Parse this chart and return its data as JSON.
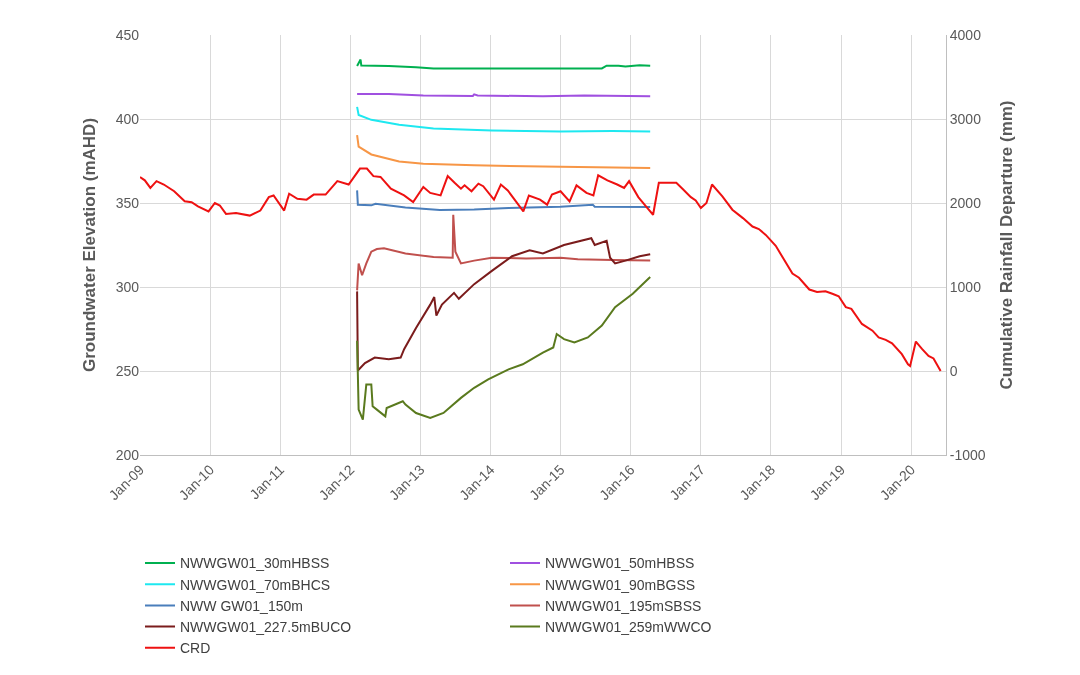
{
  "chart_data": {
    "type": "line",
    "xlabel": null,
    "ylabel": "Groundwater Elevation (mAHD)",
    "y2label": "Cumulative Rainfall Departure (mm)",
    "xlim": [
      "2009-01-01",
      "2020-07-01"
    ],
    "xticks": [
      {
        "value": "2009-01-01",
        "label": "Jan-09"
      },
      {
        "value": "2010-01-01",
        "label": "Jan-10"
      },
      {
        "value": "2011-01-01",
        "label": "Jan-11"
      },
      {
        "value": "2012-01-01",
        "label": "Jan-12"
      },
      {
        "value": "2013-01-01",
        "label": "Jan-13"
      },
      {
        "value": "2014-01-01",
        "label": "Jan-14"
      },
      {
        "value": "2015-01-01",
        "label": "Jan-15"
      },
      {
        "value": "2016-01-01",
        "label": "Jan-16"
      },
      {
        "value": "2017-01-01",
        "label": "Jan-17"
      },
      {
        "value": "2018-01-01",
        "label": "Jan-18"
      },
      {
        "value": "2019-01-01",
        "label": "Jan-19"
      },
      {
        "value": "2020-01-01",
        "label": "Jan-20"
      }
    ],
    "ylim": [
      200,
      450
    ],
    "yticks": [
      200,
      250,
      300,
      350,
      400,
      450
    ],
    "y2lim": [
      -1000,
      4000
    ],
    "y2ticks": [
      -1000,
      0,
      1000,
      2000,
      3000,
      4000
    ],
    "grid": true,
    "legend": "bottom",
    "marker": "none",
    "line_style": "solid",
    "series": [
      {
        "name": "NWWGW01_30mHBSS",
        "color": "#00b050",
        "x": [
          "2012-02-06",
          "2012-02-24",
          "2012-02-28",
          "2012-07-20",
          "2012-12-09",
          "2013-03-10",
          "2013-10-08",
          "2015-08-04",
          "2015-08-29",
          "2015-10-30",
          "2015-12-05",
          "2016-02-17",
          "2016-04-12"
        ],
        "values": [
          431.5,
          435.4,
          431.8,
          431.5,
          430.8,
          430.1,
          430.1,
          430.1,
          431.7,
          431.7,
          431.2,
          432,
          431.7
        ]
      },
      {
        "name": "NWWGW01_50mHBSS",
        "color": "#a050e0",
        "x": [
          "2012-02-06",
          "2012-07-20",
          "2013-01-16",
          "2013-10-01",
          "2013-10-08",
          "2013-10-26",
          "2014-10-01",
          "2015-05-05",
          "2016-04-12"
        ],
        "values": [
          414.9,
          414.9,
          414.0,
          413.7,
          414.7,
          414.0,
          413.5,
          414.0,
          413.5
        ]
      },
      {
        "name": "NWWGW01_70mBHCS",
        "color": "#1ee8f0",
        "x": [
          "2012-02-06",
          "2012-02-14",
          "2012-04-20",
          "2012-09-12",
          "2013-03-10",
          "2014-01-08",
          "2015-01-01",
          "2015-09-27",
          "2016-04-12"
        ],
        "values": [
          407.2,
          402.4,
          399.5,
          396.6,
          394.4,
          393.2,
          392.6,
          392.8,
          392.6
        ]
      },
      {
        "name": "NWWGW01_90mBGSS",
        "color": "#f79646",
        "x": [
          "2012-02-06",
          "2012-02-14",
          "2012-04-20",
          "2012-09-12",
          "2013-01-16",
          "2013-10-08",
          "2014-10-01",
          "2016-04-12"
        ],
        "values": [
          390.4,
          383.6,
          378.9,
          374.7,
          373.3,
          372.4,
          371.7,
          370.9
        ]
      },
      {
        "name": "NWW GW01_150m",
        "color": "#4a7ebb",
        "x": [
          "2012-02-06",
          "2012-02-10",
          "2012-04-20",
          "2012-05-12",
          "2012-10-15",
          "2013-04-12",
          "2013-10-08",
          "2014-04-05",
          "2015-01-01",
          "2015-06-18",
          "2015-06-28",
          "2016-04-12"
        ],
        "values": [
          357.5,
          349,
          348.6,
          349.5,
          347.3,
          345.9,
          346.1,
          347,
          347.8,
          349,
          347.8,
          347.6
        ]
      },
      {
        "name": "NWWGW01_195mSBSS",
        "color": "#c0504d",
        "x": [
          "2012-02-06",
          "2012-02-14",
          "2012-03-03",
          "2012-03-25",
          "2012-04-20",
          "2012-05-19",
          "2012-06-25",
          "2012-10-15",
          "2013-03-10",
          "2013-06-18",
          "2013-06-21",
          "2013-07-02",
          "2013-07-31",
          "2013-10-08",
          "2014-01-08",
          "2014-07-06",
          "2015-01-01",
          "2015-04-01",
          "2015-09-27",
          "2016-04-12"
        ],
        "values": [
          298,
          314,
          307,
          314,
          321,
          322.6,
          323,
          320,
          317.8,
          317.4,
          343,
          321,
          314,
          315.7,
          317.4,
          317,
          317.4,
          316.5,
          316,
          315.7
        ]
      },
      {
        "name": "NWWGW01_227.5mBUCO",
        "color": "#7b1c1c",
        "x": [
          "2012-02-06",
          "2012-02-10",
          "2012-03-18",
          "2012-05-08",
          "2012-07-20",
          "2012-09-20",
          "2012-10-08",
          "2012-12-09",
          "2013-02-21",
          "2013-03-14",
          "2013-03-25",
          "2013-04-23",
          "2013-06-25",
          "2013-07-20",
          "2013-10-08",
          "2014-01-08",
          "2014-04-23",
          "2014-07-24",
          "2014-10-01",
          "2015-01-19",
          "2015-06-10",
          "2015-06-28",
          "2015-08-29",
          "2015-09-16",
          "2015-10-12",
          "2015-12-05",
          "2016-02-17",
          "2016-04-12"
        ],
        "values": [
          297.4,
          250.3,
          254.7,
          258,
          257,
          258,
          263,
          275.6,
          289.5,
          294,
          283,
          289.5,
          296.5,
          293,
          301.7,
          309.6,
          318.3,
          321.8,
          320,
          325,
          329,
          325,
          327.5,
          317.4,
          314,
          315.7,
          318.3,
          319.5
        ]
      },
      {
        "name": "NWWGW01_259mWWCO",
        "color": "#5a7a1e",
        "x": [
          "2012-02-06",
          "2012-02-14",
          "2012-03-07",
          "2012-03-25",
          "2012-04-20",
          "2012-04-27",
          "2012-05-19",
          "2012-07-02",
          "2012-07-09",
          "2012-10-01",
          "2012-10-15",
          "2012-12-09",
          "2013-02-21",
          "2013-05-01",
          "2013-07-31",
          "2013-10-08",
          "2013-12-20",
          "2014-04-05",
          "2014-06-18",
          "2014-10-01",
          "2014-11-24",
          "2014-12-12",
          "2015-01-19",
          "2015-03-14",
          "2015-05-23",
          "2015-08-04",
          "2015-10-12",
          "2016-01-12",
          "2016-04-12"
        ],
        "values": [
          268,
          227,
          221,
          242,
          242,
          229,
          227,
          223,
          228,
          232,
          230,
          225,
          222,
          225,
          234,
          240,
          245,
          251,
          254,
          261,
          264,
          272,
          269,
          267,
          270,
          277,
          288,
          296,
          306
        ]
      },
      {
        "name": "CRD",
        "color": "#ee1111",
        "axis": "y2",
        "x": [
          "2009-01-01",
          "2009-01-26",
          "2009-02-24",
          "2009-03-28",
          "2009-05-05",
          "2009-06-28",
          "2009-08-22",
          "2009-09-27",
          "2009-10-30",
          "2009-12-24",
          "2010-01-26",
          "2010-02-21",
          "2010-03-25",
          "2010-05-16",
          "2010-07-27",
          "2010-09-20",
          "2010-11-03",
          "2010-11-28",
          "2011-01-22",
          "2011-02-17",
          "2011-04-01",
          "2011-05-19",
          "2011-06-25",
          "2011-08-26",
          "2011-10-26",
          "2011-12-24",
          "2012-02-21",
          "2012-03-28",
          "2012-05-01",
          "2012-06-07",
          "2012-07-31",
          "2012-10-08",
          "2012-11-24",
          "2013-01-16",
          "2013-02-21",
          "2013-04-16",
          "2013-05-23",
          "2013-06-28",
          "2013-07-31",
          "2013-08-19",
          "2013-09-24",
          "2013-10-30",
          "2013-11-24",
          "2014-01-19",
          "2014-02-24",
          "2014-04-01",
          "2014-06-21",
          "2014-07-20",
          "2014-09-16",
          "2014-10-23",
          "2014-11-17",
          "2015-01-01",
          "2015-02-17",
          "2015-03-25",
          "2015-05-16",
          "2015-06-21",
          "2015-07-16",
          "2015-09-02",
          "2015-10-23",
          "2015-11-28",
          "2015-12-24",
          "2016-02-10",
          "2016-04-01",
          "2016-04-27",
          "2016-05-27",
          "2016-08-26",
          "2016-09-27",
          "2016-11-10",
          "2016-12-05",
          "2017-01-01",
          "2017-01-30",
          "2017-02-28",
          "2017-04-23",
          "2017-06-14",
          "2017-08-08",
          "2017-09-27",
          "2017-10-30",
          "2017-12-05",
          "2018-01-26",
          "2018-04-23",
          "2018-05-27",
          "2018-07-20",
          "2018-08-29",
          "2018-10-12",
          "2018-11-17",
          "2018-12-20",
          "2019-01-26",
          "2019-02-24",
          "2019-04-20",
          "2019-06-14",
          "2019-07-16",
          "2019-08-22",
          "2019-09-24",
          "2019-11-14",
          "2019-12-16",
          "2019-12-27",
          "2020-01-26",
          "2020-02-28",
          "2020-04-01",
          "2020-04-27",
          "2020-06-03"
        ],
        "values": [
          2310,
          2270,
          2180,
          2260,
          2220,
          2140,
          2020,
          2010,
          1960,
          1900,
          2000,
          1970,
          1870,
          1880,
          1850,
          1910,
          2070,
          2090,
          1910,
          2110,
          2050,
          2040,
          2100,
          2100,
          2260,
          2220,
          2410,
          2410,
          2320,
          2310,
          2170,
          2090,
          2010,
          2190,
          2120,
          2090,
          2320,
          2240,
          2170,
          2210,
          2140,
          2230,
          2200,
          2040,
          2220,
          2150,
          1900,
          2090,
          2040,
          1980,
          2100,
          2140,
          2020,
          2210,
          2120,
          2090,
          2330,
          2270,
          2220,
          2180,
          2260,
          2070,
          1930,
          1860,
          2240,
          2240,
          2170,
          2070,
          2030,
          1940,
          2000,
          2220,
          2080,
          1920,
          1820,
          1720,
          1690,
          1620,
          1490,
          1160,
          1110,
          970,
          940,
          950,
          920,
          890,
          760,
          740,
          560,
          480,
          400,
          370,
          330,
          200,
          80,
          60,
          350,
          260,
          180,
          150,
          0
        ]
      }
    ]
  }
}
